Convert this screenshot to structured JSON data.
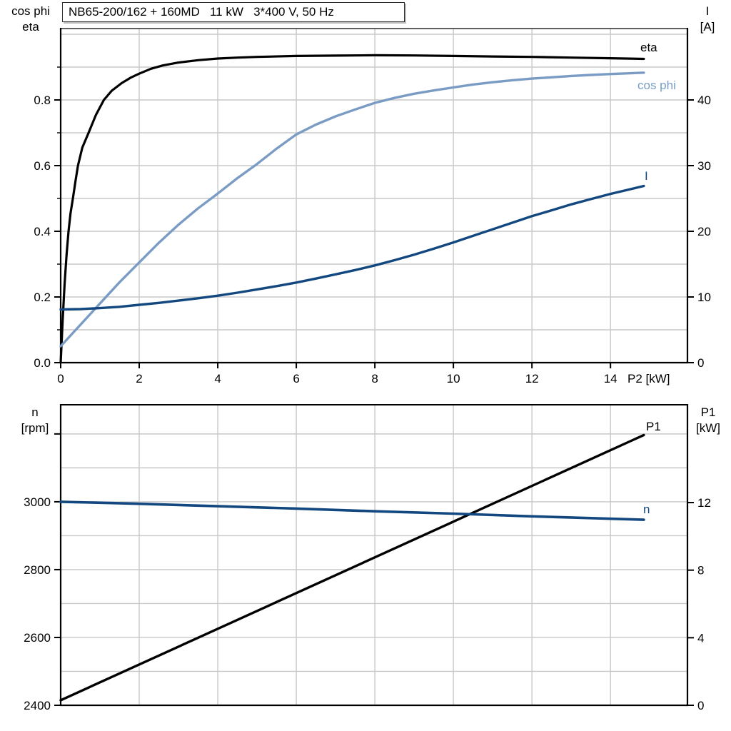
{
  "title": "NB65-200/162 + 160MD   11 kW   3*400 V, 50 Hz",
  "colors": {
    "black_curve": "#000000",
    "cos_phi_curve": "#7A9CC4",
    "current_curve": "#12487F",
    "grid": "#C8C8C8",
    "axis": "#000000",
    "background": "#FFFFFF"
  },
  "chart_data": [
    {
      "id": "top",
      "type": "line",
      "title": "NB65-200/162 + 160MD   11 kW   3*400 V, 50 Hz",
      "xlabel": "P2 [kW]",
      "ylabel_left": "cos phi / eta",
      "ylabel_right": "I [A]",
      "legend_position": "inline-labels",
      "grid": true,
      "x_axis": {
        "min": 0,
        "max": 15.96,
        "label": "P2 [kW]",
        "ticks": [
          {
            "v": 0,
            "label": "0"
          },
          {
            "v": 2,
            "label": "2"
          },
          {
            "v": 4,
            "label": "4"
          },
          {
            "v": 6,
            "label": "6"
          },
          {
            "v": 8,
            "label": "8"
          },
          {
            "v": 10,
            "label": "10"
          },
          {
            "v": 12,
            "label": "12"
          },
          {
            "v": 14,
            "label": "14"
          }
        ],
        "grid_values": [
          2,
          4,
          6,
          8,
          10,
          12,
          14
        ]
      },
      "left_axis": {
        "corner_lines": [
          "cos phi",
          "eta"
        ],
        "min": 0,
        "max": 1.0174,
        "ticks": [
          {
            "v": 0,
            "label": "0.0"
          },
          {
            "v": 0.2,
            "label": "0.2"
          },
          {
            "v": 0.4,
            "label": "0.4"
          },
          {
            "v": 0.6,
            "label": "0.6"
          },
          {
            "v": 0.8,
            "label": "0.8"
          }
        ],
        "minor_ticks": [
          0.1,
          0.3,
          0.5,
          0.7,
          0.9
        ],
        "grid_values": [
          0.1,
          0.2,
          0.3,
          0.4,
          0.5,
          0.6,
          0.7,
          0.8,
          0.9,
          1.0
        ]
      },
      "right_axis": {
        "corner_lines": [
          "I",
          "[A]"
        ],
        "min": 0,
        "max": 50.87,
        "ticks": [
          {
            "v": 0,
            "label": "0"
          },
          {
            "v": 10,
            "label": "10"
          },
          {
            "v": 20,
            "label": "20"
          },
          {
            "v": 30,
            "label": "30"
          },
          {
            "v": 40,
            "label": "40"
          }
        ]
      },
      "series": [
        {
          "name": "eta",
          "axis": "left",
          "color": "#000000",
          "width": 3.2,
          "label": {
            "text": "eta",
            "x": 897,
            "y": 72,
            "color": "#000000"
          },
          "points": [
            [
              0,
              0
            ],
            [
              0.05,
              0.13
            ],
            [
              0.1,
              0.24
            ],
            [
              0.15,
              0.33
            ],
            [
              0.2,
              0.4
            ],
            [
              0.25,
              0.455
            ],
            [
              0.31,
              0.5
            ],
            [
              0.38,
              0.555
            ],
            [
              0.44,
              0.6
            ],
            [
              0.55,
              0.655
            ],
            [
              0.71,
              0.7
            ],
            [
              0.9,
              0.755
            ],
            [
              1.1,
              0.8
            ],
            [
              1.3,
              0.828
            ],
            [
              1.55,
              0.851
            ],
            [
              1.8,
              0.869
            ],
            [
              2,
              0.88
            ],
            [
              2.3,
              0.895
            ],
            [
              2.6,
              0.905
            ],
            [
              3,
              0.914
            ],
            [
              3.5,
              0.921
            ],
            [
              4,
              0.926
            ],
            [
              4.5,
              0.929
            ],
            [
              5,
              0.931
            ],
            [
              6,
              0.934
            ],
            [
              7,
              0.935
            ],
            [
              8,
              0.936
            ],
            [
              9,
              0.9355
            ],
            [
              10,
              0.934
            ],
            [
              11,
              0.9325
            ],
            [
              12,
              0.931
            ],
            [
              13,
              0.929
            ],
            [
              14,
              0.927
            ],
            [
              14.85,
              0.925
            ]
          ]
        },
        {
          "name": "cos phi",
          "axis": "left",
          "color": "#7A9CC4",
          "width": 3.4,
          "label": {
            "text": "cos phi",
            "x": 893,
            "y": 125,
            "color": "#7A9CC4"
          },
          "points": [
            [
              0,
              0.05
            ],
            [
              0.5,
              0.115
            ],
            [
              1,
              0.18
            ],
            [
              1.5,
              0.245
            ],
            [
              2,
              0.305
            ],
            [
              2.5,
              0.365
            ],
            [
              3,
              0.42
            ],
            [
              3.5,
              0.47
            ],
            [
              4,
              0.515
            ],
            [
              4.5,
              0.562
            ],
            [
              5,
              0.605
            ],
            [
              5.5,
              0.652
            ],
            [
              6,
              0.695
            ],
            [
              6.5,
              0.725
            ],
            [
              7,
              0.75
            ],
            [
              7.5,
              0.771
            ],
            [
              8,
              0.791
            ],
            [
              8.5,
              0.806
            ],
            [
              9,
              0.819
            ],
            [
              9.5,
              0.829
            ],
            [
              10,
              0.838
            ],
            [
              10.5,
              0.847
            ],
            [
              11,
              0.854
            ],
            [
              11.5,
              0.86
            ],
            [
              12,
              0.865
            ],
            [
              12.5,
              0.869
            ],
            [
              13,
              0.873
            ],
            [
              13.5,
              0.876
            ],
            [
              14,
              0.879
            ],
            [
              14.85,
              0.883
            ]
          ]
        },
        {
          "name": "I",
          "axis": "right",
          "color": "#12487F",
          "width": 3.4,
          "label": {
            "text": "I",
            "x": 903,
            "y": 252,
            "color": "#12487F"
          },
          "points": [
            [
              0,
              8.1
            ],
            [
              0.5,
              8.15
            ],
            [
              1,
              8.3
            ],
            [
              1.5,
              8.5
            ],
            [
              2,
              8.8
            ],
            [
              2.5,
              9.1
            ],
            [
              3,
              9.45
            ],
            [
              3.5,
              9.8
            ],
            [
              4,
              10.2
            ],
            [
              4.5,
              10.65
            ],
            [
              5,
              11.15
            ],
            [
              5.5,
              11.65
            ],
            [
              6,
              12.2
            ],
            [
              6.5,
              12.8
            ],
            [
              7,
              13.45
            ],
            [
              7.5,
              14.1
            ],
            [
              8,
              14.8
            ],
            [
              8.5,
              15.6
            ],
            [
              9,
              16.45
            ],
            [
              9.5,
              17.35
            ],
            [
              10,
              18.3
            ],
            [
              10.5,
              19.3
            ],
            [
              11,
              20.3
            ],
            [
              11.5,
              21.3
            ],
            [
              12,
              22.3
            ],
            [
              12.5,
              23.2
            ],
            [
              13,
              24.1
            ],
            [
              13.5,
              24.9
            ],
            [
              14,
              25.7
            ],
            [
              14.85,
              26.9
            ]
          ]
        }
      ]
    },
    {
      "id": "bottom",
      "type": "line",
      "title": "",
      "xlabel": "P2 [kW] (shared, unlabeled)",
      "ylabel_left": "n [rpm]",
      "ylabel_right": "P1 [kW]",
      "legend_position": "inline-labels",
      "grid": true,
      "x_axis": {
        "min": 0,
        "max": 15.96,
        "label": "",
        "ticks": [],
        "grid_values": [
          2,
          4,
          6,
          8,
          10,
          12,
          14
        ]
      },
      "left_axis": {
        "corner_lines": [
          "n",
          "[rpm]"
        ],
        "min": 2400,
        "max": 3286,
        "ticks": [
          {
            "v": 2400,
            "label": "2400"
          },
          {
            "v": 2600,
            "label": "2600"
          },
          {
            "v": 2800,
            "label": "2800"
          },
          {
            "v": 3000,
            "label": "3000"
          },
          {
            "v": 3200,
            "label": ""
          }
        ],
        "minor_ticks": [],
        "grid_values": [
          2500,
          2600,
          2700,
          2800,
          2900,
          3000,
          3100,
          3200
        ]
      },
      "right_axis": {
        "corner_lines": [
          "P1",
          "[kW]"
        ],
        "min": 0,
        "max": 17.79,
        "ticks": [
          {
            "v": 0,
            "label": "0"
          },
          {
            "v": 4,
            "label": "4"
          },
          {
            "v": 8,
            "label": "8"
          },
          {
            "v": 12,
            "label": "12"
          }
        ]
      },
      "series": [
        {
          "name": "P1",
          "axis": "right",
          "color": "#000000",
          "width": 3.4,
          "label": {
            "text": "P1",
            "x": 905,
            "y": 603,
            "color": "#000000"
          },
          "points": [
            [
              0,
              0.3
            ],
            [
              14.85,
              16.0
            ]
          ]
        },
        {
          "name": "n",
          "axis": "left",
          "color": "#12487F",
          "width": 3.6,
          "label": {
            "text": "n",
            "x": 901,
            "y": 719,
            "color": "#12487F"
          },
          "points": [
            [
              0,
              3000
            ],
            [
              2,
              2994
            ],
            [
              4,
              2987
            ],
            [
              6,
              2980
            ],
            [
              8,
              2972
            ],
            [
              10,
              2965
            ],
            [
              12,
              2957
            ],
            [
              14.85,
              2947
            ]
          ]
        }
      ]
    }
  ]
}
